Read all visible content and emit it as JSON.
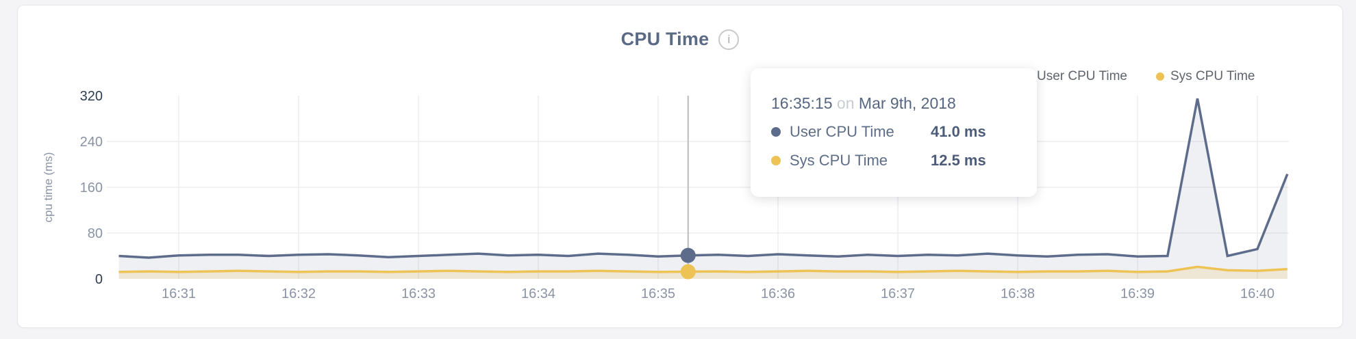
{
  "header": {
    "title": "CPU Time",
    "info_icon_glyph": "i"
  },
  "legend": {
    "items": [
      {
        "label": "User CPU Time",
        "color": "#5d6c8a"
      },
      {
        "label": "Sys CPU Time",
        "color": "#eec355"
      }
    ]
  },
  "tooltip": {
    "time": "16:35:15",
    "connector": "on",
    "date": "Mar 9th, 2018",
    "rows": [
      {
        "label": "User CPU Time",
        "value": "41.0 ms",
        "color": "#5d6c8a"
      },
      {
        "label": "Sys CPU Time",
        "value": "12.5 ms",
        "color": "#eec355"
      }
    ]
  },
  "chart_data": {
    "type": "area",
    "title": "CPU Time",
    "ylabel": "cpu time (ms)",
    "ylim": [
      0,
      320
    ],
    "yticks": [
      0,
      80,
      160,
      240,
      320
    ],
    "xticks": [
      "16:31",
      "16:32",
      "16:33",
      "16:34",
      "16:35",
      "16:36",
      "16:37",
      "16:38",
      "16:39",
      "16:40"
    ],
    "grid": true,
    "legend_position": "top-right",
    "x": [
      "16:30:30",
      "16:30:45",
      "16:31:00",
      "16:31:15",
      "16:31:30",
      "16:31:45",
      "16:32:00",
      "16:32:15",
      "16:32:30",
      "16:32:45",
      "16:33:00",
      "16:33:15",
      "16:33:30",
      "16:33:45",
      "16:34:00",
      "16:34:15",
      "16:34:30",
      "16:34:45",
      "16:35:00",
      "16:35:15",
      "16:35:30",
      "16:35:45",
      "16:36:00",
      "16:36:15",
      "16:36:30",
      "16:36:45",
      "16:37:00",
      "16:37:15",
      "16:37:30",
      "16:37:45",
      "16:38:00",
      "16:38:15",
      "16:38:30",
      "16:38:45",
      "16:39:00",
      "16:39:15",
      "16:39:30",
      "16:39:45",
      "16:40:00",
      "16:40:15"
    ],
    "series": [
      {
        "name": "User CPU Time",
        "color": "#5d6c8a",
        "fill": "rgba(96,110,138,0.10)",
        "values": [
          40,
          37,
          41,
          42,
          42,
          40,
          42,
          43,
          41,
          38,
          40,
          42,
          44,
          41,
          42,
          40,
          44,
          42,
          39,
          41,
          42,
          40,
          43,
          41,
          39,
          42,
          40,
          42,
          41,
          44,
          41,
          39,
          42,
          43,
          39,
          40,
          315,
          40,
          52,
          183
        ]
      },
      {
        "name": "Sys CPU Time",
        "color": "#eec355",
        "fill": "rgba(238,195,85,0.18)",
        "values": [
          12,
          13,
          12,
          13,
          14,
          13,
          12,
          13,
          13,
          12,
          13,
          14,
          13,
          12,
          13,
          13,
          14,
          13,
          12,
          12.5,
          13,
          12,
          13,
          14,
          13,
          13,
          12,
          13,
          14,
          13,
          12,
          13,
          13,
          14,
          12,
          13,
          21,
          15,
          14,
          17
        ]
      }
    ],
    "hover": {
      "time": "16:35:15",
      "values": [
        41.0,
        12.5
      ]
    }
  }
}
